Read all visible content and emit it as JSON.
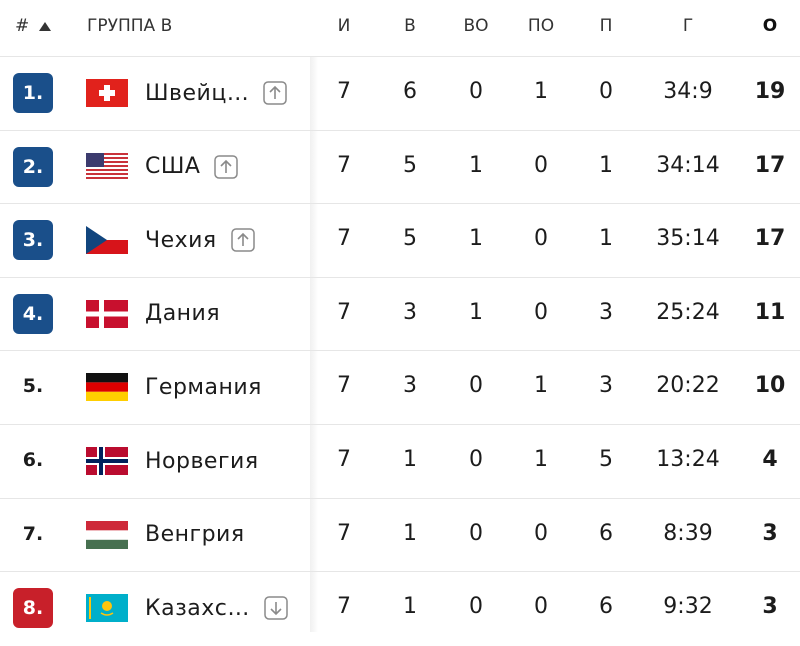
{
  "header": {
    "rank": "#",
    "group": "ГРУППА B",
    "columns": [
      "И",
      "В",
      "ВО",
      "ПО",
      "П",
      "Г",
      "О"
    ]
  },
  "rows": [
    {
      "rank": "1.",
      "team": "Швейц…",
      "stats": [
        7,
        6,
        0,
        1,
        0,
        "34:9",
        19
      ]
    },
    {
      "rank": "2.",
      "team": "США",
      "stats": [
        7,
        5,
        1,
        0,
        1,
        "34:14",
        17
      ]
    },
    {
      "rank": "3.",
      "team": "Чехия",
      "stats": [
        7,
        5,
        1,
        0,
        1,
        "35:14",
        17
      ]
    },
    {
      "rank": "4.",
      "team": "Дания",
      "stats": [
        7,
        3,
        1,
        0,
        3,
        "25:24",
        11
      ]
    },
    {
      "rank": "5.",
      "team": "Германия",
      "stats": [
        7,
        3,
        0,
        1,
        3,
        "20:22",
        10
      ]
    },
    {
      "rank": "6.",
      "team": "Норвегия",
      "stats": [
        7,
        1,
        0,
        1,
        5,
        "13:24",
        4
      ]
    },
    {
      "rank": "7.",
      "team": "Венгрия",
      "stats": [
        7,
        1,
        0,
        0,
        6,
        "8:39",
        3
      ]
    },
    {
      "rank": "8.",
      "team": "Казахс…",
      "stats": [
        7,
        1,
        0,
        0,
        6,
        "9:32",
        3
      ]
    }
  ]
}
